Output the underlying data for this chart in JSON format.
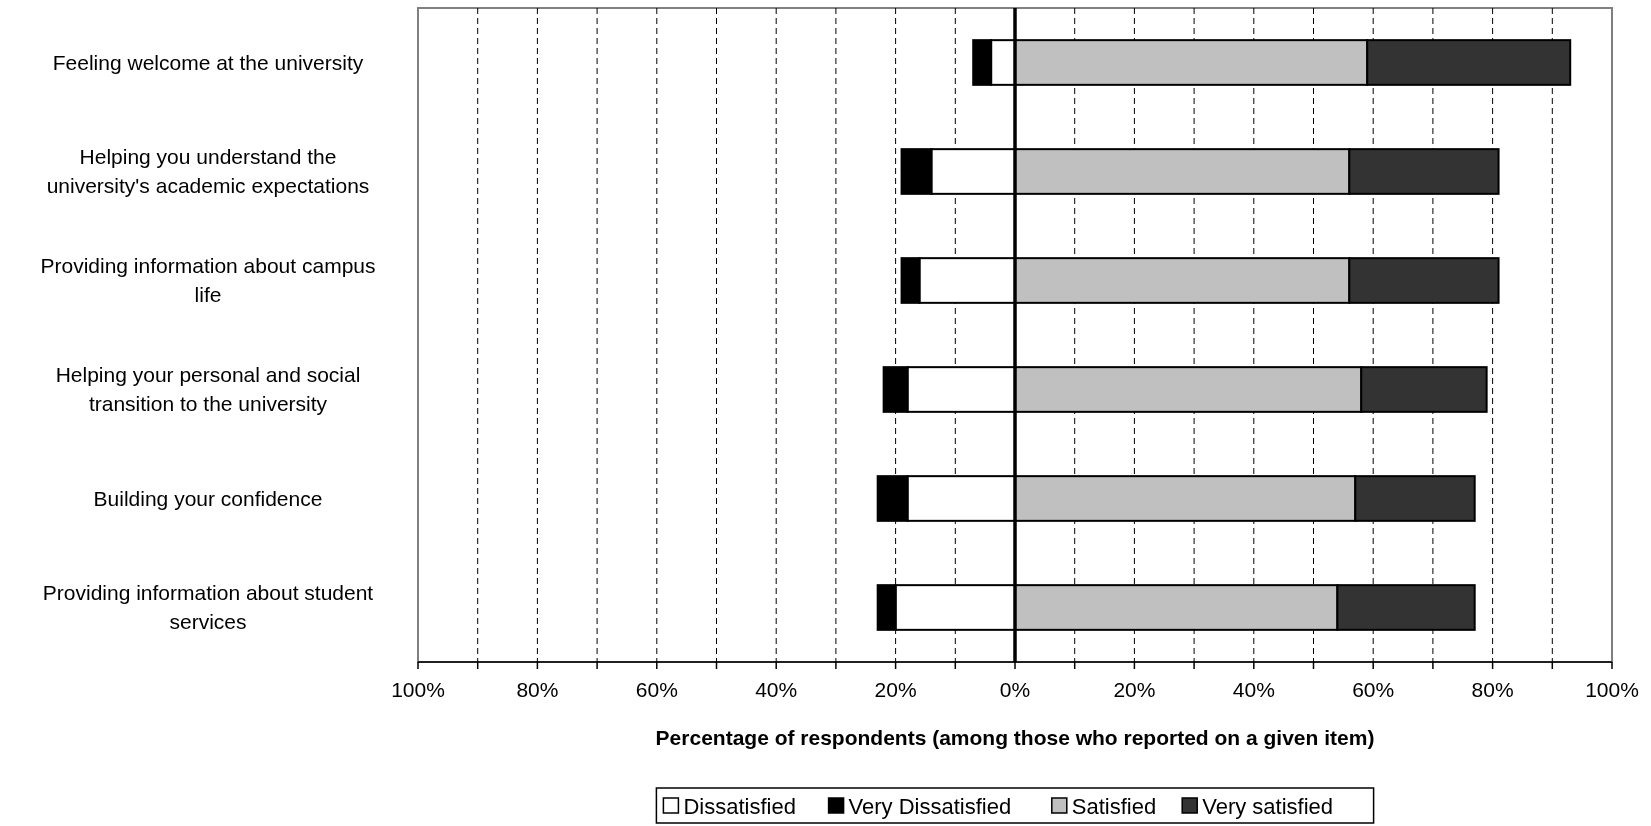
{
  "chart_data": {
    "type": "bar",
    "orientation": "horizontal",
    "stacked": true,
    "categories": [
      "Feeling welcome at the university",
      "Helping you understand the university's academic expectations",
      "Providing information about campus life",
      "Helping your personal and social transition to the university",
      "Building your confidence",
      "Providing information about student services"
    ],
    "series": [
      {
        "name": "Dissatisfied",
        "color": "#ffffff",
        "values": [
          -4,
          -14,
          -16,
          -18,
          -18,
          -20
        ]
      },
      {
        "name": "Very Dissatisfied",
        "color": "#000000",
        "values": [
          -3,
          -5,
          -3,
          -4,
          -5,
          -3
        ]
      },
      {
        "name": "Satisfied",
        "color": "#c0c0c0",
        "values": [
          59,
          56,
          56,
          58,
          57,
          54
        ]
      },
      {
        "name": "Very satisfied",
        "color": "#333333",
        "values": [
          34,
          25,
          25,
          21,
          20,
          23
        ]
      }
    ],
    "xlim": [
      -100,
      100
    ],
    "xticks": [
      {
        "value": -100,
        "label": "100%"
      },
      {
        "value": -90,
        "label": null
      },
      {
        "value": -80,
        "label": "80%"
      },
      {
        "value": -70,
        "label": null
      },
      {
        "value": -60,
        "label": "60%"
      },
      {
        "value": -50,
        "label": null
      },
      {
        "value": -40,
        "label": "40%"
      },
      {
        "value": -30,
        "label": null
      },
      {
        "value": -20,
        "label": "20%"
      },
      {
        "value": -10,
        "label": null
      },
      {
        "value": 0,
        "label": "0%"
      },
      {
        "value": 10,
        "label": null
      },
      {
        "value": 20,
        "label": "20%"
      },
      {
        "value": 30,
        "label": null
      },
      {
        "value": 40,
        "label": "40%"
      },
      {
        "value": 50,
        "label": null
      },
      {
        "value": 60,
        "label": "60%"
      },
      {
        "value": 70,
        "label": null
      },
      {
        "value": 80,
        "label": "80%"
      },
      {
        "value": 90,
        "label": null
      },
      {
        "value": 100,
        "label": "100%"
      }
    ],
    "xlabel": "Percentage of respondents (among those who reported on a given item)",
    "grid": "x",
    "legend": "bottom"
  }
}
